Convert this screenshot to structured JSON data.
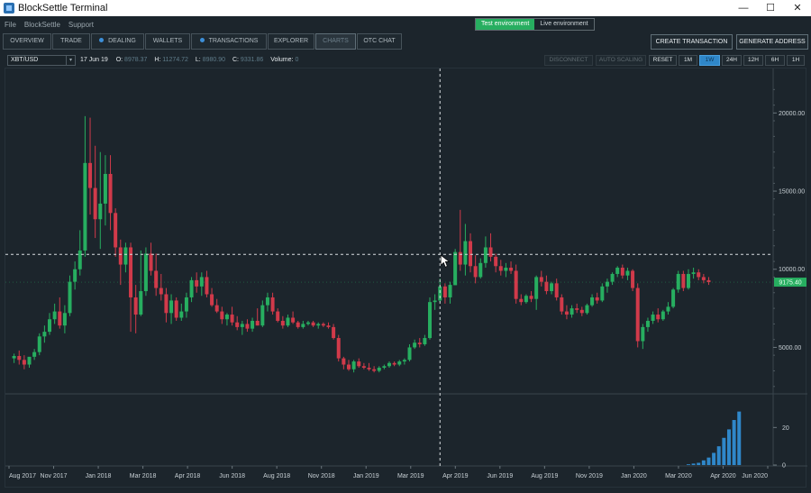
{
  "window": {
    "title": "BlockSettle Terminal",
    "minimize": "—",
    "maximize": "☐",
    "close": "✕"
  },
  "menu": [
    "File",
    "BlockSettle",
    "Support"
  ],
  "environment": {
    "test_label": "Test environment",
    "live_label": "Live environment",
    "active": "test"
  },
  "tabs": [
    {
      "label": "OVERVIEW",
      "dot": false
    },
    {
      "label": "TRADE",
      "dot": false
    },
    {
      "label": "DEALING",
      "dot": true
    },
    {
      "label": "WALLETS",
      "dot": false
    },
    {
      "label": "TRANSACTIONS",
      "dot": true
    },
    {
      "label": "EXPLORER",
      "dot": false
    },
    {
      "label": "CHARTS",
      "dot": false,
      "active": true
    },
    {
      "label": "OTC CHAT",
      "dot": false
    }
  ],
  "actions": {
    "create_transaction": "CREATE TRANSACTION",
    "generate_address": "GENERATE ADDRESS"
  },
  "chart_toolbar": {
    "symbol": "XBT/USD",
    "date": "17 Jun 19",
    "open_label": "O:",
    "open": "8978.37",
    "high_label": "H:",
    "high": "11274.72",
    "low_label": "L:",
    "low": "8980.90",
    "close_label": "C:",
    "close": "9331.86",
    "volume_label": "Volume:",
    "volume": "0",
    "disconnect": "DISCONNECT",
    "auto_scaling": "AUTO SCALING",
    "reset": "RESET",
    "intervals": [
      "1M",
      "1W",
      "24H",
      "12H",
      "6H",
      "1H"
    ],
    "selected_interval": "1W"
  },
  "colors": {
    "up": "#27ae60",
    "down": "#d13a4a",
    "volume": "#2f87c9",
    "last_price_tag": "#27ae60",
    "crosshair": "#d8dde0"
  },
  "chart_data": {
    "type": "candlestick",
    "pair": "XBT/USD",
    "interval": "1W",
    "price_axis": {
      "ticks": [
        5000,
        10000,
        15000,
        20000
      ],
      "tick_labels": [
        "5000.00",
        "10000.00",
        "15000.00",
        "20000.00"
      ],
      "range": [
        2200,
        22500
      ]
    },
    "volume_axis": {
      "ticks": [
        0,
        20
      ],
      "tick_labels": [
        "0",
        "20"
      ],
      "range": [
        0,
        36
      ]
    },
    "time_axis": {
      "labels": [
        "Aug 2017",
        "Nov 2017",
        "Jan 2018",
        "Mar 2018",
        "Apr 2018",
        "Jun 2018",
        "Aug 2018",
        "Nov 2018",
        "Jan 2019",
        "Mar 2019",
        "Apr 2019",
        "Jun 2019",
        "Aug 2019",
        "Nov 2019",
        "Jan 2020",
        "Mar 2020",
        "Apr 2020",
        "Jun 2020"
      ],
      "range": [
        0,
        150
      ]
    },
    "last_price": "9175.40",
    "last_price_value": 9175.4,
    "crosshair": {
      "x": 85,
      "price": 10950
    },
    "candles": [
      {
        "x": 1,
        "o": 4300,
        "h": 4600,
        "l": 4000,
        "c": 4450
      },
      {
        "x": 2,
        "o": 4450,
        "h": 4800,
        "l": 3900,
        "c": 4200
      },
      {
        "x": 3,
        "o": 4200,
        "h": 4500,
        "l": 3600,
        "c": 3900
      },
      {
        "x": 4,
        "o": 3900,
        "h": 4300,
        "l": 3700,
        "c": 4400
      },
      {
        "x": 5,
        "o": 4400,
        "h": 4900,
        "l": 4200,
        "c": 4700
      },
      {
        "x": 6,
        "o": 4700,
        "h": 5900,
        "l": 4500,
        "c": 5700
      },
      {
        "x": 7,
        "o": 5700,
        "h": 6400,
        "l": 5300,
        "c": 6000
      },
      {
        "x": 8,
        "o": 6000,
        "h": 7200,
        "l": 5800,
        "c": 6800
      },
      {
        "x": 9,
        "o": 6800,
        "h": 7800,
        "l": 6500,
        "c": 7300
      },
      {
        "x": 10,
        "o": 7300,
        "h": 8200,
        "l": 6200,
        "c": 6400
      },
      {
        "x": 11,
        "o": 6400,
        "h": 7700,
        "l": 5900,
        "c": 7200
      },
      {
        "x": 12,
        "o": 7200,
        "h": 9600,
        "l": 7000,
        "c": 9200
      },
      {
        "x": 13,
        "o": 9200,
        "h": 10500,
        "l": 8700,
        "c": 10000
      },
      {
        "x": 14,
        "o": 10000,
        "h": 12500,
        "l": 9600,
        "c": 11200
      },
      {
        "x": 15,
        "o": 11200,
        "h": 19800,
        "l": 10800,
        "c": 16800
      },
      {
        "x": 16,
        "o": 16800,
        "h": 19700,
        "l": 13500,
        "c": 15200
      },
      {
        "x": 17,
        "o": 15200,
        "h": 17900,
        "l": 12000,
        "c": 13200
      },
      {
        "x": 18,
        "o": 13200,
        "h": 17500,
        "l": 11300,
        "c": 14200
      },
      {
        "x": 19,
        "o": 14200,
        "h": 17300,
        "l": 12800,
        "c": 16100
      },
      {
        "x": 20,
        "o": 16100,
        "h": 17300,
        "l": 12500,
        "c": 13600
      },
      {
        "x": 21,
        "o": 13600,
        "h": 13900,
        "l": 10800,
        "c": 11400
      },
      {
        "x": 22,
        "o": 11400,
        "h": 11900,
        "l": 9000,
        "c": 10300
      },
      {
        "x": 23,
        "o": 10300,
        "h": 11700,
        "l": 9800,
        "c": 11400
      },
      {
        "x": 24,
        "o": 11400,
        "h": 11700,
        "l": 6000,
        "c": 8200
      },
      {
        "x": 25,
        "o": 8200,
        "h": 9000,
        "l": 5900,
        "c": 7100
      },
      {
        "x": 26,
        "o": 7100,
        "h": 11200,
        "l": 7000,
        "c": 8600
      },
      {
        "x": 27,
        "o": 8600,
        "h": 11400,
        "l": 8300,
        "c": 11000
      },
      {
        "x": 28,
        "o": 11000,
        "h": 11700,
        "l": 9600,
        "c": 9900
      },
      {
        "x": 29,
        "o": 9900,
        "h": 11000,
        "l": 8300,
        "c": 8800
      },
      {
        "x": 30,
        "o": 8800,
        "h": 9700,
        "l": 8000,
        "c": 8400
      },
      {
        "x": 31,
        "o": 8400,
        "h": 8800,
        "l": 6600,
        "c": 7200
      },
      {
        "x": 32,
        "o": 7200,
        "h": 8400,
        "l": 6500,
        "c": 8000
      },
      {
        "x": 33,
        "o": 8000,
        "h": 8200,
        "l": 6700,
        "c": 6900
      },
      {
        "x": 34,
        "o": 6900,
        "h": 7800,
        "l": 6700,
        "c": 7300
      },
      {
        "x": 35,
        "o": 7300,
        "h": 8500,
        "l": 6900,
        "c": 8200
      },
      {
        "x": 36,
        "o": 8200,
        "h": 9500,
        "l": 7900,
        "c": 9300
      },
      {
        "x": 37,
        "o": 9300,
        "h": 9800,
        "l": 8500,
        "c": 8900
      },
      {
        "x": 38,
        "o": 8900,
        "h": 9800,
        "l": 8300,
        "c": 9500
      },
      {
        "x": 39,
        "o": 9500,
        "h": 9900,
        "l": 8200,
        "c": 8400
      },
      {
        "x": 40,
        "o": 8400,
        "h": 8800,
        "l": 7600,
        "c": 7700
      },
      {
        "x": 41,
        "o": 7700,
        "h": 8100,
        "l": 7200,
        "c": 7300
      },
      {
        "x": 42,
        "o": 7300,
        "h": 7600,
        "l": 6500,
        "c": 6800
      },
      {
        "x": 43,
        "o": 6800,
        "h": 7200,
        "l": 6400,
        "c": 7100
      },
      {
        "x": 44,
        "o": 7100,
        "h": 7600,
        "l": 6400,
        "c": 6600
      },
      {
        "x": 45,
        "o": 6600,
        "h": 7000,
        "l": 6100,
        "c": 6300
      },
      {
        "x": 46,
        "o": 6300,
        "h": 6700,
        "l": 5800,
        "c": 6500
      },
      {
        "x": 47,
        "o": 6500,
        "h": 6800,
        "l": 6000,
        "c": 6200
      },
      {
        "x": 48,
        "o": 6200,
        "h": 6900,
        "l": 6000,
        "c": 6700
      },
      {
        "x": 49,
        "o": 6700,
        "h": 7500,
        "l": 6400,
        "c": 6400
      },
      {
        "x": 50,
        "o": 6400,
        "h": 8000,
        "l": 6300,
        "c": 7700
      },
      {
        "x": 51,
        "o": 7700,
        "h": 8500,
        "l": 7300,
        "c": 8200
      },
      {
        "x": 52,
        "o": 8200,
        "h": 8500,
        "l": 7100,
        "c": 7300
      },
      {
        "x": 53,
        "o": 7300,
        "h": 7500,
        "l": 6600,
        "c": 6700
      },
      {
        "x": 54,
        "o": 6700,
        "h": 7000,
        "l": 6200,
        "c": 6400
      },
      {
        "x": 55,
        "o": 6400,
        "h": 7100,
        "l": 6300,
        "c": 6900
      },
      {
        "x": 56,
        "o": 6900,
        "h": 7300,
        "l": 6500,
        "c": 6600
      },
      {
        "x": 57,
        "o": 6600,
        "h": 6700,
        "l": 6200,
        "c": 6300
      },
      {
        "x": 58,
        "o": 6300,
        "h": 6700,
        "l": 6200,
        "c": 6500
      },
      {
        "x": 59,
        "o": 6500,
        "h": 6700,
        "l": 6400,
        "c": 6600
      },
      {
        "x": 60,
        "o": 6600,
        "h": 6700,
        "l": 6300,
        "c": 6400
      },
      {
        "x": 61,
        "o": 6400,
        "h": 6600,
        "l": 6200,
        "c": 6500
      },
      {
        "x": 62,
        "o": 6500,
        "h": 6600,
        "l": 6300,
        "c": 6400
      },
      {
        "x": 63,
        "o": 6400,
        "h": 6600,
        "l": 6200,
        "c": 6300
      },
      {
        "x": 64,
        "o": 6300,
        "h": 6500,
        "l": 5500,
        "c": 5600
      },
      {
        "x": 65,
        "o": 5600,
        "h": 5800,
        "l": 4100,
        "c": 4300
      },
      {
        "x": 66,
        "o": 4300,
        "h": 4400,
        "l": 3600,
        "c": 3900
      },
      {
        "x": 67,
        "o": 3900,
        "h": 4200,
        "l": 3500,
        "c": 3600
      },
      {
        "x": 68,
        "o": 3600,
        "h": 4200,
        "l": 3400,
        "c": 4100
      },
      {
        "x": 69,
        "o": 4100,
        "h": 4300,
        "l": 3700,
        "c": 3800
      },
      {
        "x": 70,
        "o": 3800,
        "h": 4000,
        "l": 3600,
        "c": 3700
      },
      {
        "x": 71,
        "o": 3700,
        "h": 4000,
        "l": 3500,
        "c": 3600
      },
      {
        "x": 72,
        "o": 3600,
        "h": 3800,
        "l": 3400,
        "c": 3500
      },
      {
        "x": 73,
        "o": 3500,
        "h": 3800,
        "l": 3400,
        "c": 3700
      },
      {
        "x": 74,
        "o": 3700,
        "h": 3900,
        "l": 3600,
        "c": 3800
      },
      {
        "x": 75,
        "o": 3800,
        "h": 4100,
        "l": 3700,
        "c": 4000
      },
      {
        "x": 76,
        "o": 4000,
        "h": 4100,
        "l": 3800,
        "c": 3900
      },
      {
        "x": 77,
        "o": 3900,
        "h": 4200,
        "l": 3800,
        "c": 4100
      },
      {
        "x": 78,
        "o": 4100,
        "h": 4300,
        "l": 3900,
        "c": 4200
      },
      {
        "x": 79,
        "o": 4200,
        "h": 5200,
        "l": 4100,
        "c": 5000
      },
      {
        "x": 80,
        "o": 5000,
        "h": 5500,
        "l": 4900,
        "c": 5300
      },
      {
        "x": 81,
        "o": 5300,
        "h": 5600,
        "l": 5000,
        "c": 5200
      },
      {
        "x": 82,
        "o": 5200,
        "h": 5800,
        "l": 5100,
        "c": 5600
      },
      {
        "x": 83,
        "o": 5600,
        "h": 8200,
        "l": 5500,
        "c": 7900
      },
      {
        "x": 84,
        "o": 7900,
        "h": 8400,
        "l": 7400,
        "c": 8000
      },
      {
        "x": 85,
        "o": 8000,
        "h": 9400,
        "l": 7900,
        "c": 8900
      },
      {
        "x": 86,
        "o": 8900,
        "h": 9100,
        "l": 7800,
        "c": 8200
      },
      {
        "x": 87,
        "o": 8200,
        "h": 9200,
        "l": 7800,
        "c": 9000
      },
      {
        "x": 88,
        "o": 8980,
        "h": 11300,
        "l": 8980,
        "c": 11100
      },
      {
        "x": 89,
        "o": 11100,
        "h": 13800,
        "l": 9900,
        "c": 10300
      },
      {
        "x": 90,
        "o": 10300,
        "h": 12900,
        "l": 9600,
        "c": 11800
      },
      {
        "x": 91,
        "o": 11800,
        "h": 12300,
        "l": 9800,
        "c": 10200
      },
      {
        "x": 92,
        "o": 10200,
        "h": 10900,
        "l": 9100,
        "c": 9500
      },
      {
        "x": 93,
        "o": 9500,
        "h": 10700,
        "l": 9400,
        "c": 10400
      },
      {
        "x": 94,
        "o": 10400,
        "h": 12100,
        "l": 10100,
        "c": 11400
      },
      {
        "x": 95,
        "o": 11400,
        "h": 12300,
        "l": 10500,
        "c": 10800
      },
      {
        "x": 96,
        "o": 10800,
        "h": 11000,
        "l": 9800,
        "c": 10200
      },
      {
        "x": 97,
        "o": 10200,
        "h": 10600,
        "l": 9600,
        "c": 9900
      },
      {
        "x": 98,
        "o": 9900,
        "h": 10400,
        "l": 9500,
        "c": 10100
      },
      {
        "x": 99,
        "o": 10100,
        "h": 10500,
        "l": 9700,
        "c": 9900
      },
      {
        "x": 100,
        "o": 9900,
        "h": 10300,
        "l": 7800,
        "c": 8100
      },
      {
        "x": 101,
        "o": 8100,
        "h": 8400,
        "l": 7700,
        "c": 7900
      },
      {
        "x": 102,
        "o": 7900,
        "h": 8400,
        "l": 7800,
        "c": 8300
      },
      {
        "x": 103,
        "o": 8300,
        "h": 8600,
        "l": 7900,
        "c": 8100
      },
      {
        "x": 104,
        "o": 8100,
        "h": 9600,
        "l": 7400,
        "c": 9500
      },
      {
        "x": 105,
        "o": 9500,
        "h": 9900,
        "l": 8900,
        "c": 9200
      },
      {
        "x": 106,
        "o": 9200,
        "h": 9600,
        "l": 8400,
        "c": 8600
      },
      {
        "x": 107,
        "o": 8600,
        "h": 9200,
        "l": 8400,
        "c": 9100
      },
      {
        "x": 108,
        "o": 9100,
        "h": 9400,
        "l": 8000,
        "c": 8200
      },
      {
        "x": 109,
        "o": 8200,
        "h": 8400,
        "l": 7100,
        "c": 7300
      },
      {
        "x": 110,
        "o": 7300,
        "h": 7700,
        "l": 6800,
        "c": 7100
      },
      {
        "x": 111,
        "o": 7100,
        "h": 7700,
        "l": 6900,
        "c": 7500
      },
      {
        "x": 112,
        "o": 7500,
        "h": 7800,
        "l": 7200,
        "c": 7400
      },
      {
        "x": 113,
        "o": 7400,
        "h": 7600,
        "l": 7000,
        "c": 7200
      },
      {
        "x": 114,
        "o": 7200,
        "h": 7800,
        "l": 7100,
        "c": 7700
      },
      {
        "x": 115,
        "o": 7700,
        "h": 8400,
        "l": 7600,
        "c": 8200
      },
      {
        "x": 116,
        "o": 8200,
        "h": 8500,
        "l": 7800,
        "c": 8000
      },
      {
        "x": 117,
        "o": 8000,
        "h": 9100,
        "l": 7900,
        "c": 8900
      },
      {
        "x": 118,
        "o": 8900,
        "h": 9400,
        "l": 8500,
        "c": 9200
      },
      {
        "x": 119,
        "o": 9200,
        "h": 9800,
        "l": 9000,
        "c": 9700
      },
      {
        "x": 120,
        "o": 9700,
        "h": 10200,
        "l": 9500,
        "c": 10100
      },
      {
        "x": 121,
        "o": 10100,
        "h": 10300,
        "l": 9400,
        "c": 9600
      },
      {
        "x": 122,
        "o": 9600,
        "h": 10100,
        "l": 9300,
        "c": 9900
      },
      {
        "x": 123,
        "o": 9900,
        "h": 10000,
        "l": 8600,
        "c": 8800
      },
      {
        "x": 124,
        "o": 8800,
        "h": 9100,
        "l": 5000,
        "c": 5400
      },
      {
        "x": 125,
        "o": 5400,
        "h": 6500,
        "l": 4900,
        "c": 6300
      },
      {
        "x": 126,
        "o": 6300,
        "h": 6900,
        "l": 6000,
        "c": 6700
      },
      {
        "x": 127,
        "o": 6700,
        "h": 7300,
        "l": 6500,
        "c": 7100
      },
      {
        "x": 128,
        "o": 7100,
        "h": 7500,
        "l": 6600,
        "c": 6800
      },
      {
        "x": 129,
        "o": 6800,
        "h": 7400,
        "l": 6700,
        "c": 7300
      },
      {
        "x": 130,
        "o": 7300,
        "h": 7900,
        "l": 7100,
        "c": 7600
      },
      {
        "x": 131,
        "o": 7600,
        "h": 8800,
        "l": 7500,
        "c": 8700
      },
      {
        "x": 132,
        "o": 8700,
        "h": 9900,
        "l": 8500,
        "c": 9700
      },
      {
        "x": 133,
        "o": 9700,
        "h": 9900,
        "l": 8600,
        "c": 8800
      },
      {
        "x": 134,
        "o": 8800,
        "h": 10000,
        "l": 8700,
        "c": 9700
      },
      {
        "x": 135,
        "o": 9700,
        "h": 10100,
        "l": 9400,
        "c": 9800
      },
      {
        "x": 136,
        "o": 9800,
        "h": 10000,
        "l": 9300,
        "c": 9500
      },
      {
        "x": 137,
        "o": 9500,
        "h": 9700,
        "l": 9100,
        "c": 9300
      },
      {
        "x": 138,
        "o": 9300,
        "h": 9500,
        "l": 9000,
        "c": 9175
      }
    ],
    "volume": [
      {
        "x": 134,
        "v": 0.4
      },
      {
        "x": 135,
        "v": 0.8
      },
      {
        "x": 136,
        "v": 1.2
      },
      {
        "x": 137,
        "v": 2.5
      },
      {
        "x": 138,
        "v": 4.0
      },
      {
        "x": 139,
        "v": 6.5
      },
      {
        "x": 140,
        "v": 10.0
      },
      {
        "x": 141,
        "v": 14.5
      },
      {
        "x": 142,
        "v": 19.0
      },
      {
        "x": 143,
        "v": 24.0
      },
      {
        "x": 144,
        "v": 28.5
      }
    ]
  }
}
